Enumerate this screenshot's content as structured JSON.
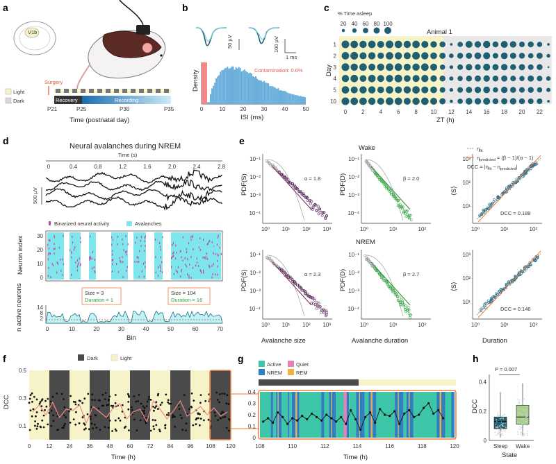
{
  "panels": {
    "a": {
      "label": "a",
      "region": "V1b",
      "surgery": "Surgery",
      "legend": [
        "Light",
        "Dark"
      ],
      "phases": [
        "Recovery",
        "Recording"
      ],
      "ticks": [
        "P21",
        "P25",
        "P30",
        "P35"
      ],
      "xlabel": "Time (postnatal day)"
    },
    "b": {
      "label": "b",
      "scale1": "50 µV",
      "scale2": "100 µV",
      "scale_time": "1 ms",
      "ylabel": "Density",
      "contamination": "Contamination: 0.6%",
      "xlabel": "ISI (ms)",
      "xticks": [
        "0",
        "10",
        "20",
        "30",
        "40",
        "50"
      ]
    },
    "c": {
      "label": "c",
      "size_title": "% Time asleep",
      "size_ticks": [
        "20",
        "40",
        "60",
        "80",
        "100"
      ],
      "animal": "Animal 1",
      "ylabel": "Day",
      "yticks": [
        "1",
        "2",
        "3",
        "4",
        "5",
        "10"
      ],
      "xlabel": "ZT (h)",
      "xticks": [
        "0",
        "2",
        "4",
        "6",
        "8",
        "10",
        "12",
        "14",
        "16",
        "18",
        "20",
        "22"
      ]
    },
    "d": {
      "label": "d",
      "title": "Neural avalanches during NREM",
      "time_label": "Time (s)",
      "time_ticks": [
        "0",
        "0.4",
        "0.8",
        "1.2",
        "1.6",
        "2.0",
        "2.4",
        "2.8"
      ],
      "scale": "500 µV",
      "legend_binarized": "Binarized neural activity",
      "legend_avalanches": "Avalanches",
      "neuron_ylabel": "Neuron index",
      "neuron_yticks": [
        "30",
        "20",
        "10",
        "0"
      ],
      "size1": "Size = 3",
      "duration1": "Duration = 1",
      "size2": "Size = 104",
      "duration2": "Duration = 16",
      "active_ylabel": "n active neurons",
      "active_yticks": [
        "14",
        "8",
        "2"
      ],
      "xlabel": "Bin",
      "xticks": [
        "0",
        "10",
        "20",
        "30",
        "40",
        "50",
        "60",
        "70"
      ]
    },
    "e": {
      "label": "e",
      "wake": "Wake",
      "nrem": "NREM",
      "alpha_wake": "α = 1.8",
      "beta_wake": "β = 2.0",
      "alpha_nrem": "α = 2.3",
      "beta_nrem": "β = 2.7",
      "pdf_s": "PDF(S)",
      "pdf_d": "PDF(D)",
      "mean_s": "⟨S⟩",
      "eta_fit": "η",
      "eta_fit_sub": "fit",
      "eta_pred": "η",
      "eta_pred_sub": "predicted",
      "eta_pred_eq": " = (β − 1)/(α − 1)",
      "dcc_eq": "DCC = |η",
      "dcc_eq_mid": " − η",
      "dcc_eq_end": "|",
      "dcc_wake": "DCC = 0.189",
      "dcc_nrem": "DCC = 0.146",
      "x_size": "Avalanche size",
      "x_duration": "Avalanche duration",
      "x_dur": "Duration",
      "exp_ticks": [
        "10⁰",
        "10¹",
        "10²",
        "10³"
      ],
      "pdf_yticks": [
        "10⁻¹",
        "10⁻²",
        "10⁻³",
        "10⁻⁴"
      ],
      "mean_yticks": [
        "10³",
        "10²",
        "10¹"
      ]
    },
    "f": {
      "label": "f",
      "legend": [
        "Dark",
        "Light"
      ],
      "ylabel": "DCC",
      "yticks": [
        "0.5",
        "0.3",
        "0.1"
      ],
      "xlabel": "Time (h)",
      "xticks": [
        "0",
        "12",
        "24",
        "36",
        "48",
        "60",
        "72",
        "84",
        "96",
        "108",
        "120"
      ]
    },
    "g": {
      "label": "g",
      "legend": [
        "Active",
        "Quiet",
        "NREM",
        "REM"
      ],
      "yticks": [
        "0.4",
        "0.3",
        "0.2",
        "0.1",
        "0"
      ],
      "xlabel": "Time (h)",
      "xticks": [
        "108",
        "110",
        "112",
        "114",
        "116",
        "118",
        "120"
      ]
    },
    "h": {
      "label": "h",
      "pvalue": "P = 0.007",
      "ylabel": "DCC",
      "yticks": [
        "0.4",
        "0.2",
        "0"
      ],
      "categories": [
        "Sleep",
        "Wake"
      ],
      "xlabel": "State"
    }
  },
  "colors": {
    "light": "#f6f3c8",
    "dark": "#4a4a4a",
    "teal": "#1e5f72",
    "cyan": "#7fe6ee",
    "blue_hist": "#6aaedc",
    "salmon": "#f08a8a",
    "active": "#3dc6a8",
    "quiet": "#e87fb8",
    "nrem": "#2f7fc0",
    "rem": "#f0b23c",
    "orange": "#f07a3a",
    "green": "#2ea03a"
  },
  "chart_data": [
    {
      "type": "scatter",
      "panel": "c",
      "title": "Animal 1",
      "xlabel": "ZT (h)",
      "ylabel": "Day",
      "size_encoding": "% Time asleep",
      "x": [
        0,
        1,
        2,
        3,
        4,
        5,
        6,
        7,
        8,
        9,
        10,
        11,
        12,
        13,
        14,
        15,
        16,
        17,
        18,
        19,
        20,
        21,
        22,
        23
      ],
      "rows": [
        {
          "day": "1",
          "values": [
            85,
            80,
            75,
            80,
            70,
            85,
            80,
            75,
            80,
            70,
            60,
            50,
            10,
            40,
            70,
            60,
            75,
            50,
            70,
            60,
            45,
            50,
            40,
            10
          ]
        },
        {
          "day": "2",
          "values": [
            80,
            85,
            70,
            75,
            60,
            80,
            75,
            70,
            85,
            75,
            65,
            55,
            30,
            50,
            55,
            65,
            70,
            45,
            65,
            55,
            50,
            40,
            55,
            20
          ]
        },
        {
          "day": "3",
          "values": [
            85,
            75,
            80,
            70,
            75,
            80,
            80,
            70,
            75,
            80,
            70,
            40,
            20,
            45,
            60,
            50,
            70,
            55,
            60,
            50,
            55,
            45,
            50,
            5
          ]
        },
        {
          "day": "4",
          "values": [
            75,
            80,
            65,
            80,
            70,
            75,
            85,
            65,
            70,
            75,
            60,
            50,
            25,
            40,
            50,
            55,
            60,
            50,
            55,
            45,
            40,
            55,
            45,
            30
          ]
        },
        {
          "day": "5",
          "values": [
            80,
            70,
            75,
            75,
            65,
            80,
            70,
            75,
            80,
            70,
            65,
            45,
            20,
            45,
            55,
            60,
            65,
            40,
            60,
            50,
            45,
            50,
            40,
            25
          ]
        },
        {
          "day": "10",
          "values": [
            85,
            80,
            80,
            75,
            70,
            85,
            80,
            70,
            75,
            80,
            70,
            55,
            15,
            40,
            65,
            60,
            70,
            50,
            55,
            60,
            50,
            45,
            45,
            10
          ]
        }
      ]
    },
    {
      "type": "line",
      "panel": "f",
      "xlabel": "Time (h)",
      "ylabel": "DCC",
      "xlim": [
        0,
        120
      ],
      "ylim": [
        0,
        0.5
      ],
      "x": [
        2,
        6,
        10,
        14,
        18,
        22,
        26,
        30,
        34,
        38,
        42,
        46,
        50,
        54,
        58,
        62,
        66,
        70,
        74,
        78,
        82,
        86,
        90,
        94,
        98,
        102,
        106,
        110,
        114,
        118
      ],
      "values": [
        0.2,
        0.25,
        0.18,
        0.27,
        0.16,
        0.22,
        0.21,
        0.25,
        0.12,
        0.24,
        0.2,
        0.16,
        0.23,
        0.26,
        0.15,
        0.2,
        0.22,
        0.13,
        0.28,
        0.22,
        0.15,
        0.21,
        0.28,
        0.17,
        0.2,
        0.24,
        0.18,
        0.23,
        0.17,
        0.2
      ]
    },
    {
      "type": "line",
      "panel": "g",
      "xlabel": "Time (h)",
      "xlim": [
        108,
        120
      ],
      "ylim": [
        0,
        0.4
      ],
      "x": [
        108.2,
        108.5,
        108.8,
        109.1,
        109.4,
        109.7,
        110.0,
        110.3,
        110.6,
        110.9,
        111.2,
        111.5,
        111.8,
        112.1,
        112.4,
        112.7,
        113.0,
        113.3,
        113.6,
        113.9,
        114.2,
        114.5,
        114.8,
        115.1,
        115.4,
        115.7,
        116.0,
        116.3,
        116.6,
        116.9,
        117.2,
        117.5,
        117.8,
        118.1,
        118.4,
        118.7,
        119.0,
        119.3
      ],
      "values": [
        0.14,
        0.17,
        0.13,
        0.22,
        0.18,
        0.12,
        0.17,
        0.15,
        0.19,
        0.16,
        0.21,
        0.18,
        0.15,
        0.2,
        0.17,
        0.14,
        0.18,
        0.12,
        0.24,
        0.16,
        0.07,
        0.18,
        0.22,
        0.13,
        0.25,
        0.2,
        0.19,
        0.23,
        0.12,
        0.21,
        0.24,
        0.18,
        0.2,
        0.26,
        0.3,
        0.21,
        0.24,
        0.17
      ]
    },
    {
      "type": "box",
      "panel": "h",
      "xlabel": "State",
      "ylabel": "DCC",
      "categories": [
        "Sleep",
        "Wake"
      ],
      "ylim": [
        0,
        0.45
      ],
      "boxes": [
        {
          "name": "Sleep",
          "min": 0.02,
          "q1": 0.08,
          "median": 0.13,
          "q3": 0.16,
          "max": 0.33
        },
        {
          "name": "Wake",
          "min": 0.03,
          "q1": 0.11,
          "median": 0.16,
          "q3": 0.24,
          "max": 0.39
        }
      ]
    }
  ]
}
